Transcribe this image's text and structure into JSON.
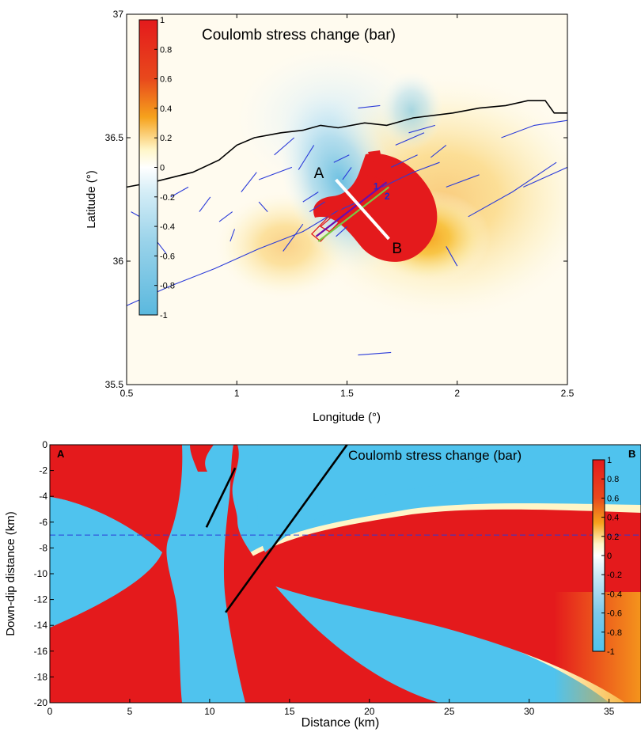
{
  "chart_data": [
    {
      "type": "heatmap",
      "title": "Coulomb stress change (bar)",
      "xlabel": "Longitude (°)",
      "ylabel": "Latitude (°)",
      "xlim": [
        0.5,
        2.5
      ],
      "ylim": [
        35.5,
        37
      ],
      "x_ticks": [
        0.5,
        1,
        1.5,
        2,
        2.5
      ],
      "x_tick_labels": [
        "0.5",
        "1",
        "1.5",
        "2",
        "2.5"
      ],
      "y_ticks": [
        35.5,
        36,
        36.5,
        37
      ],
      "y_tick_labels": [
        "35.5",
        "36",
        "36.5",
        "37"
      ],
      "colorbar": {
        "range": [
          -1,
          1
        ],
        "ticks": [
          1,
          0.8,
          0.6,
          0.4,
          0.2,
          0,
          -0.2,
          -0.4,
          -0.6,
          -0.8,
          -1
        ],
        "tick_labels": [
          "1",
          "0.8",
          "0.6",
          "0.4",
          "0.2",
          "0",
          "-0.2",
          "-0.4",
          "-0.6",
          "-0.8",
          "-1"
        ],
        "placement": "top-left inside plot",
        "colors": [
          "#e41a1c",
          "#f6a21c",
          "#fff6c8",
          "#ffffff",
          "#bfe4f2",
          "#5ab8de"
        ]
      },
      "annotations": [
        {
          "text": "A",
          "lon": 1.45,
          "lat": 36.33
        },
        {
          "text": "B",
          "lon": 1.69,
          "lat": 36.09
        },
        {
          "text": "1",
          "lon": 1.62,
          "lat": 36.31
        },
        {
          "text": "2",
          "lon": 1.67,
          "lat": 36.27
        }
      ],
      "profile_line": {
        "from": [
          1.45,
          36.33
        ],
        "to": [
          1.69,
          36.09
        ],
        "color": "#ffffff"
      },
      "coastline": [
        [
          0.5,
          36.3
        ],
        [
          0.62,
          36.32
        ],
        [
          0.8,
          36.36
        ],
        [
          0.92,
          36.41
        ],
        [
          1.0,
          36.47
        ],
        [
          1.08,
          36.5
        ],
        [
          1.2,
          36.52
        ],
        [
          1.3,
          36.53
        ],
        [
          1.38,
          36.55
        ],
        [
          1.46,
          36.54
        ],
        [
          1.58,
          36.56
        ],
        [
          1.68,
          36.55
        ],
        [
          1.8,
          36.58
        ],
        [
          1.98,
          36.6
        ],
        [
          2.1,
          36.62
        ],
        [
          2.22,
          36.63
        ],
        [
          2.32,
          36.65
        ],
        [
          2.4,
          36.65
        ],
        [
          2.44,
          36.6
        ],
        [
          2.5,
          36.6
        ]
      ],
      "faults": [
        [
          [
            0.5,
            35.82
          ],
          [
            0.7,
            35.9
          ],
          [
            0.9,
            35.97
          ],
          [
            1.1,
            36.05
          ],
          [
            1.3,
            36.12
          ],
          [
            1.45,
            36.2
          ],
          [
            1.55,
            36.24
          ]
        ],
        [
          [
            0.52,
            36.2
          ],
          [
            0.58,
            36.17
          ]
        ],
        [
          [
            0.56,
            36.04
          ],
          [
            0.6,
            35.98
          ]
        ],
        [
          [
            0.62,
            36.1
          ],
          [
            0.68,
            36.03
          ]
        ],
        [
          [
            0.7,
            36.26
          ],
          [
            0.78,
            36.3
          ]
        ],
        [
          [
            0.83,
            36.2
          ],
          [
            0.88,
            36.26
          ]
        ],
        [
          [
            0.92,
            36.16
          ],
          [
            0.98,
            36.2
          ]
        ],
        [
          [
            0.97,
            36.08
          ],
          [
            0.99,
            36.13
          ]
        ],
        [
          [
            1.1,
            36.24
          ],
          [
            1.14,
            36.2
          ]
        ],
        [
          [
            1.02,
            36.28
          ],
          [
            1.09,
            36.36
          ]
        ],
        [
          [
            1.1,
            36.33
          ],
          [
            1.25,
            36.38
          ]
        ],
        [
          [
            1.17,
            36.43
          ],
          [
            1.26,
            36.5
          ]
        ],
        [
          [
            1.28,
            36.37
          ],
          [
            1.35,
            36.47
          ]
        ],
        [
          [
            1.21,
            36.04
          ],
          [
            1.3,
            36.15
          ]
        ],
        [
          [
            1.33,
            36.2
          ],
          [
            1.4,
            36.24
          ]
        ],
        [
          [
            1.3,
            36.24
          ],
          [
            1.37,
            36.28
          ]
        ],
        [
          [
            1.44,
            36.4
          ],
          [
            1.51,
            36.43
          ]
        ],
        [
          [
            1.48,
            36.33
          ],
          [
            1.52,
            36.38
          ]
        ],
        [
          [
            1.66,
            36.3
          ],
          [
            1.8,
            36.36
          ],
          [
            1.92,
            36.4
          ]
        ],
        [
          [
            1.7,
            36.38
          ],
          [
            1.82,
            36.43
          ]
        ],
        [
          [
            1.72,
            36.47
          ],
          [
            1.85,
            36.52
          ]
        ],
        [
          [
            1.78,
            36.52
          ],
          [
            1.9,
            36.55
          ]
        ],
        [
          [
            1.88,
            36.42
          ],
          [
            1.95,
            36.47
          ]
        ],
        [
          [
            1.95,
            36.3
          ],
          [
            2.1,
            36.35
          ]
        ],
        [
          [
            2.05,
            36.18
          ],
          [
            2.25,
            36.28
          ],
          [
            2.45,
            36.4
          ]
        ],
        [
          [
            2.3,
            36.3
          ],
          [
            2.5,
            36.38
          ]
        ],
        [
          [
            2.2,
            36.5
          ],
          [
            2.35,
            36.55
          ],
          [
            2.5,
            36.57
          ]
        ],
        [
          [
            1.55,
            36.62
          ],
          [
            1.65,
            36.63
          ]
        ],
        [
          [
            1.95,
            36.06
          ],
          [
            2.0,
            35.98
          ]
        ],
        [
          [
            1.45,
            36.1
          ],
          [
            1.5,
            36.14
          ]
        ],
        [
          [
            1.55,
            35.62
          ],
          [
            1.7,
            35.63
          ]
        ]
      ],
      "rupture_rects": [
        {
          "corners": [
            [
              1.34,
              36.11
            ],
            [
              1.6,
              36.35
            ],
            [
              1.65,
              36.33
            ],
            [
              1.38,
              36.08
            ]
          ],
          "color": "#e41a1c"
        },
        {
          "corners": [
            [
              1.38,
              36.14
            ],
            [
              1.64,
              36.34
            ],
            [
              1.68,
              36.32
            ],
            [
              1.42,
              36.12
            ]
          ],
          "color": "#e41a1c"
        }
      ],
      "fault_traces": [
        {
          "points": [
            [
              1.36,
              36.1
            ],
            [
              1.68,
              36.32
            ]
          ],
          "color": "#6a0dad"
        },
        {
          "points": [
            [
              1.37,
              36.08
            ],
            [
              1.69,
              36.3
            ]
          ],
          "color": "#7ac943"
        }
      ]
    },
    {
      "type": "heatmap",
      "title": "Coulomb stress change (bar)",
      "xlabel": "Distance (km)",
      "ylabel": "Down-dip distance (km)",
      "xlim": [
        0,
        37
      ],
      "ylim": [
        -20,
        0
      ],
      "x_ticks": [
        0,
        5,
        10,
        15,
        20,
        25,
        30,
        35
      ],
      "x_tick_labels": [
        "0",
        "5",
        "10",
        "15",
        "20",
        "25",
        "30",
        "35"
      ],
      "y_ticks": [
        0,
        -2,
        -4,
        -6,
        -8,
        -10,
        -12,
        -14,
        -16,
        -18,
        -20
      ],
      "y_tick_labels": [
        "0",
        "-2",
        "-4",
        "-6",
        "-8",
        "-10",
        "-12",
        "-14",
        "-16",
        "-18",
        "-20"
      ],
      "corner_labels": {
        "left": "A",
        "right": "B"
      },
      "reference_depth": -7,
      "fault_lines": [
        {
          "from": [
            9.8,
            -6.4
          ],
          "to": [
            11.6,
            -1.8
          ]
        },
        {
          "from": [
            11.0,
            -13.0
          ],
          "to": [
            18.6,
            0
          ]
        }
      ],
      "colorbar": {
        "range": [
          -1,
          1
        ],
        "ticks": [
          1,
          0.8,
          0.6,
          0.4,
          0.2,
          0,
          -0.2,
          -0.4,
          -0.6,
          -0.8,
          -1
        ],
        "tick_labels": [
          "1",
          "0.8",
          "0.6",
          "0.4",
          "0.2",
          "0",
          "-0.2",
          "-0.4",
          "-0.6",
          "-0.8",
          "-1"
        ],
        "placement": "right inside plot",
        "colors": [
          "#e41a1c",
          "#f6a21c",
          "#fff6c8",
          "#ffffff",
          "#bfe4f2",
          "#5ab8de"
        ]
      }
    }
  ]
}
